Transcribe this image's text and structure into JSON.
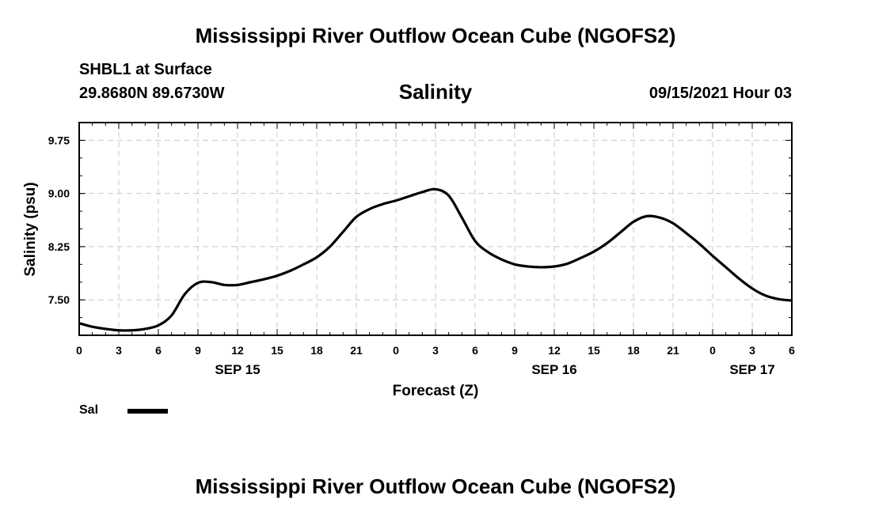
{
  "header": {
    "title": "Mississippi River Outflow Ocean Cube (NGOFS2)",
    "station": "SHBL1 at Surface",
    "coords": "29.8680N  89.6730W",
    "variable": "Salinity",
    "datetime": "09/15/2021 Hour 03"
  },
  "footer": {
    "title": "Mississippi River Outflow Ocean Cube (NGOFS2)"
  },
  "legend": {
    "label": "Sal",
    "color": "#000000"
  },
  "chart_data": {
    "type": "line",
    "title": "Salinity",
    "xlabel": "Forecast (Z)",
    "ylabel": "Salinity (psu)",
    "x_unit": "hours since 2021-09-15 00Z",
    "xlim": [
      0,
      54
    ],
    "ylim": [
      7.0,
      10.0
    ],
    "grid": true,
    "x_ticks": [
      {
        "x": 0,
        "label": "0"
      },
      {
        "x": 3,
        "label": "3"
      },
      {
        "x": 6,
        "label": "6"
      },
      {
        "x": 9,
        "label": "9"
      },
      {
        "x": 12,
        "label": "12"
      },
      {
        "x": 15,
        "label": "15"
      },
      {
        "x": 18,
        "label": "18"
      },
      {
        "x": 21,
        "label": "21"
      },
      {
        "x": 24,
        "label": "0"
      },
      {
        "x": 27,
        "label": "3"
      },
      {
        "x": 30,
        "label": "6"
      },
      {
        "x": 33,
        "label": "9"
      },
      {
        "x": 36,
        "label": "12"
      },
      {
        "x": 39,
        "label": "15"
      },
      {
        "x": 42,
        "label": "18"
      },
      {
        "x": 45,
        "label": "21"
      },
      {
        "x": 48,
        "label": "0"
      },
      {
        "x": 51,
        "label": "3"
      },
      {
        "x": 54,
        "label": "6"
      }
    ],
    "date_labels": [
      {
        "x": 12,
        "label": "SEP 15"
      },
      {
        "x": 36,
        "label": "SEP 16"
      },
      {
        "x": 51,
        "label": "SEP 17"
      }
    ],
    "y_ticks": [
      {
        "y": 7.5,
        "label": "7.50"
      },
      {
        "y": 8.25,
        "label": "8.25"
      },
      {
        "y": 9.0,
        "label": "9.00"
      },
      {
        "y": 9.75,
        "label": "9.75"
      }
    ],
    "series": [
      {
        "name": "Sal",
        "x": [
          0,
          1,
          2,
          3,
          4,
          5,
          6,
          7,
          8,
          9,
          10,
          11,
          12,
          13,
          14,
          15,
          16,
          17,
          18,
          19,
          20,
          21,
          22,
          23,
          24,
          25,
          26,
          27,
          28,
          29,
          30,
          31,
          32,
          33,
          34,
          35,
          36,
          37,
          38,
          39,
          40,
          41,
          42,
          43,
          44,
          45,
          46,
          47,
          48,
          49,
          50,
          51,
          52,
          53,
          54
        ],
        "values": [
          7.17,
          7.12,
          7.09,
          7.07,
          7.07,
          7.09,
          7.14,
          7.28,
          7.58,
          7.74,
          7.75,
          7.71,
          7.71,
          7.75,
          7.79,
          7.84,
          7.91,
          8.0,
          8.1,
          8.25,
          8.46,
          8.67,
          8.78,
          8.85,
          8.9,
          8.96,
          9.02,
          9.06,
          8.97,
          8.66,
          8.33,
          8.17,
          8.07,
          8.0,
          7.97,
          7.96,
          7.97,
          8.01,
          8.09,
          8.18,
          8.3,
          8.45,
          8.6,
          8.68,
          8.66,
          8.58,
          8.44,
          8.29,
          8.12,
          7.96,
          7.8,
          7.66,
          7.56,
          7.51,
          7.49
        ]
      }
    ]
  }
}
